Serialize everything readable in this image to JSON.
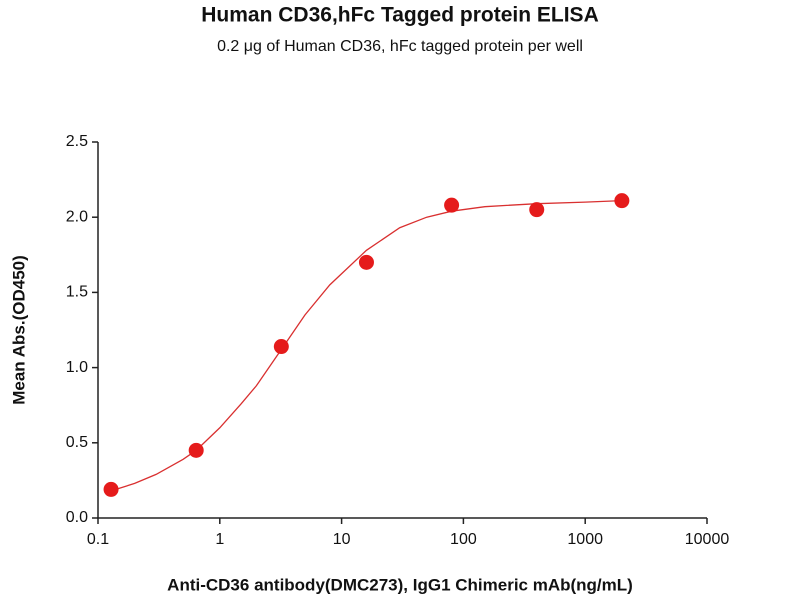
{
  "chart_data": {
    "type": "scatter",
    "title": "Human CD36,hFc Tagged protein ELISA",
    "subtitle": "0.2 μg of Human CD36, hFc tagged protein per well",
    "x_label": "Anti-CD36 antibody(DMC273), IgG1 Chimeric mAb(ng/mL)",
    "y_label": "Mean Abs.(OD450)",
    "x_scale": "log",
    "xlim": [
      0.1,
      10000
    ],
    "xticks": [
      0.1,
      1,
      10,
      100,
      1000,
      10000
    ],
    "ylim": [
      0,
      2.5
    ],
    "yticks": [
      {
        "value": 0,
        "label": "0.0"
      },
      0.5,
      {
        "value": 1,
        "label": "1.0"
      },
      1.5,
      {
        "value": 2,
        "label": "2.0"
      },
      2.5
    ],
    "grid": false,
    "series": [
      {
        "style": "markers",
        "color": "#e51b1b",
        "x": [
          0.128,
          0.64,
          3.2,
          16,
          80,
          400,
          2000
        ],
        "values": [
          0.19,
          0.45,
          1.14,
          1.7,
          2.08,
          2.05,
          2.11
        ]
      },
      {
        "style": "line",
        "color": "#d93030",
        "x": [
          0.128,
          0.2,
          0.3,
          0.5,
          0.64,
          1,
          1.5,
          2,
          3.2,
          5,
          8,
          16,
          30,
          50,
          80,
          150,
          400,
          1000,
          2000
        ],
        "values": [
          0.18,
          0.23,
          0.29,
          0.39,
          0.45,
          0.6,
          0.76,
          0.88,
          1.12,
          1.35,
          1.55,
          1.78,
          1.93,
          2.0,
          2.04,
          2.07,
          2.09,
          2.1,
          2.11
        ]
      }
    ]
  }
}
